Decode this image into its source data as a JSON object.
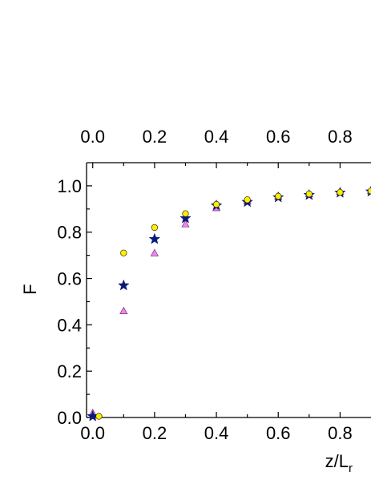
{
  "chart_data": {
    "type": "scatter",
    "title": "",
    "xlabel": {
      "main": "z/L",
      "subscript": "r"
    },
    "ylabel": "F",
    "xlim": [
      -0.02,
      0.9
    ],
    "ylim": [
      0.0,
      1.1
    ],
    "x_ticks": [
      0.0,
      0.2,
      0.4,
      0.6,
      0.8
    ],
    "x_tick_labels": [
      "0.0",
      "0.2",
      "0.4",
      "0.6",
      "0.8"
    ],
    "y_ticks": [
      0.0,
      0.2,
      0.4,
      0.6,
      0.8,
      1.0
    ],
    "y_tick_labels": [
      "0.0",
      "0.2",
      "0.4",
      "0.6",
      "0.8",
      "1.0"
    ],
    "top_axis_tick_labels": [
      "0.0",
      "0.2",
      "0.4",
      "0.6",
      "0.8"
    ],
    "grid": false,
    "legend": "none",
    "series": [
      {
        "marker": "triangle",
        "color": "#ee88ee",
        "x": [
          0.0,
          0.1,
          0.2,
          0.3,
          0.4,
          0.5,
          0.6,
          0.7,
          0.8,
          0.9
        ],
        "y": [
          0.02,
          0.46,
          0.71,
          0.835,
          0.905,
          0.935,
          0.955,
          0.965,
          0.975,
          0.98
        ]
      },
      {
        "marker": "star",
        "color": "#0a1a7a",
        "x": [
          0.0,
          0.1,
          0.2,
          0.3,
          0.4,
          0.5,
          0.6,
          0.7,
          0.8,
          0.9
        ],
        "y": [
          0.005,
          0.57,
          0.77,
          0.86,
          0.915,
          0.93,
          0.95,
          0.96,
          0.97,
          0.975
        ]
      },
      {
        "marker": "circle",
        "color": "#ffee00",
        "x": [
          0.02,
          0.1,
          0.2,
          0.3,
          0.4,
          0.5,
          0.6,
          0.7,
          0.8,
          0.9
        ],
        "y": [
          0.005,
          0.71,
          0.82,
          0.88,
          0.92,
          0.94,
          0.955,
          0.965,
          0.972,
          0.978
        ]
      }
    ]
  }
}
